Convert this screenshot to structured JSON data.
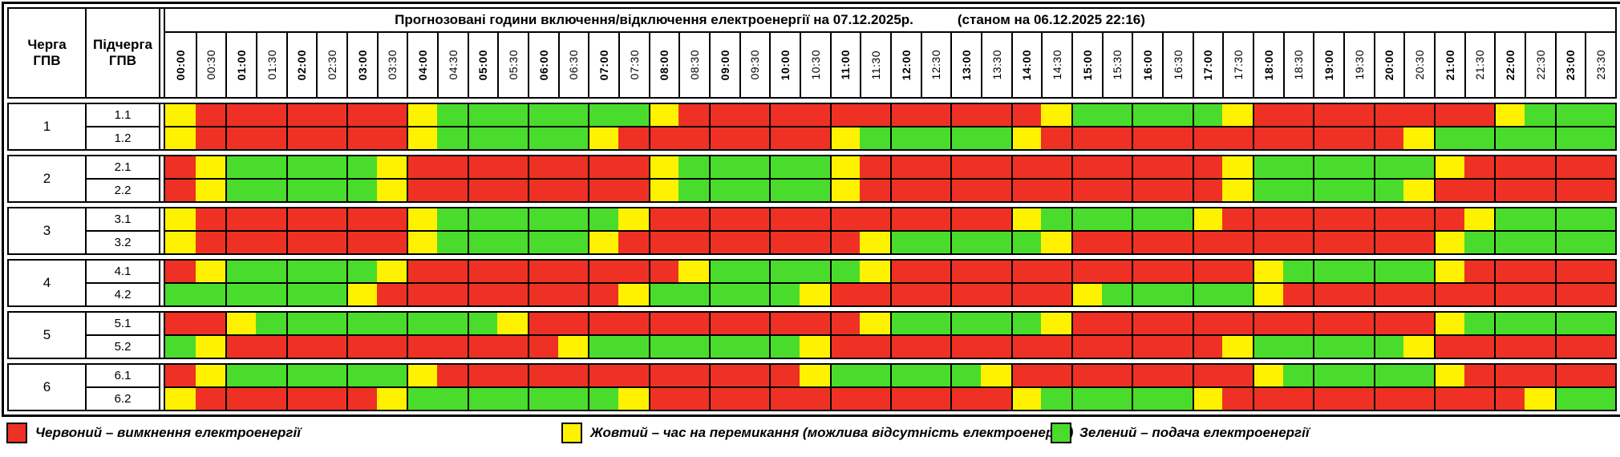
{
  "title": {
    "main": "Прогнозовані години включення/відключення електроенергії на 07.12.2025р.",
    "note": "(станом на 06.12.2025 22:16)"
  },
  "columns": {
    "queue": "Черга ГПВ",
    "subqueue": "Підчерга ГПВ"
  },
  "colors": {
    "R": "#ee3124",
    "Y": "#fff200",
    "G": "#4adc2c"
  },
  "legend": [
    {
      "key": "R",
      "label": "Червоний – вимкнення електроенергії"
    },
    {
      "key": "Y",
      "label": "Жовтий – час на перемикання (можлива відсутність електроенергії)"
    },
    {
      "key": "G",
      "label": "Зелений – подача електроенергії"
    }
  ],
  "chart_data": {
    "type": "heatmap",
    "x": [
      "00:00",
      "00:30",
      "01:00",
      "01:30",
      "02:00",
      "02:30",
      "03:00",
      "03:30",
      "04:00",
      "04:30",
      "05:00",
      "05:30",
      "06:00",
      "06:30",
      "07:00",
      "07:30",
      "08:00",
      "08:30",
      "09:00",
      "09:30",
      "10:00",
      "10:30",
      "11:00",
      "11:30",
      "12:00",
      "12:30",
      "13:00",
      "13:30",
      "14:00",
      "14:30",
      "15:00",
      "15:30",
      "16:00",
      "16:30",
      "17:00",
      "17:30",
      "18:00",
      "18:30",
      "19:00",
      "19:30",
      "20:00",
      "20:30",
      "21:00",
      "21:30",
      "22:00",
      "22:30",
      "23:00",
      "23:30"
    ],
    "value_legend": {
      "R": "вимкнення електроенергії",
      "Y": "час на перемикання",
      "G": "подача електроенергії"
    },
    "groups": [
      {
        "queue": "1",
        "rows": [
          {
            "label": "1.1",
            "cells": "YRRRRRRRYGGGGGGGYRRRRRRRRRRRRYGGGGGYRRRRRRRRYGGG"
          },
          {
            "label": "1.2",
            "cells": "YRRRRRRRYGGGGGYRRRRRRRYGGGGGYRRRRRRRRRRRRYGGGGGG"
          }
        ]
      },
      {
        "queue": "2",
        "rows": [
          {
            "label": "2.1",
            "cells": "RYGGGGGYRRRRRRRRYGGGGGYRRRRRRRRRRRRYGGGGGGYRRRRR"
          },
          {
            "label": "2.2",
            "cells": "RYGGGGGYRRRRRRRRYGGGGGYRRRRRRRRRRRRYGGGGGYRRRRRR"
          }
        ]
      },
      {
        "queue": "3",
        "rows": [
          {
            "label": "3.1",
            "cells": "YRRRRRRRYGGGGGGYRRRRRRRRRRRRYGGGGGYRRRRRRRRYGGGG"
          },
          {
            "label": "3.2",
            "cells": "YRRRRRRRYGGGGGYRRRRRRRRYGGGGGYRRRRRRRRRRRRYGGGGG"
          }
        ]
      },
      {
        "queue": "4",
        "rows": [
          {
            "label": "4.1",
            "cells": "RYGGGGGYRRRRRRRRRYGGGGGYRRRRRRRRRRRRYGGGGGYRRRRR"
          },
          {
            "label": "4.2",
            "cells": "GGGGGGYRRRRRRRRYGGGGGYRRRRRRRRYGGGGGYRRRRRRRRRRR"
          }
        ]
      },
      {
        "queue": "5",
        "rows": [
          {
            "label": "5.1",
            "cells": "RRYGGGGGGGGYRRRRRRRRRRRYGGGGGYRRRRRRRRRRRRYGGGGG"
          },
          {
            "label": "5.2",
            "cells": "GYRRRRRRRRRRRYGGGGGGGYRRRRRRRRRRRRRYGGGGGYRRRRRR"
          }
        ]
      },
      {
        "queue": "6",
        "rows": [
          {
            "label": "6.1",
            "cells": "RYGGGGGGYRRRRRRRRRRRRYGGGGGYRRRRRRRRYGGGGGYRRRRR"
          },
          {
            "label": "6.2",
            "cells": "YRRRRRRYGGGGGGGYRRRRRRRRRRRRYGGGGGYRRRRRRRRRRYGG"
          }
        ]
      }
    ]
  }
}
